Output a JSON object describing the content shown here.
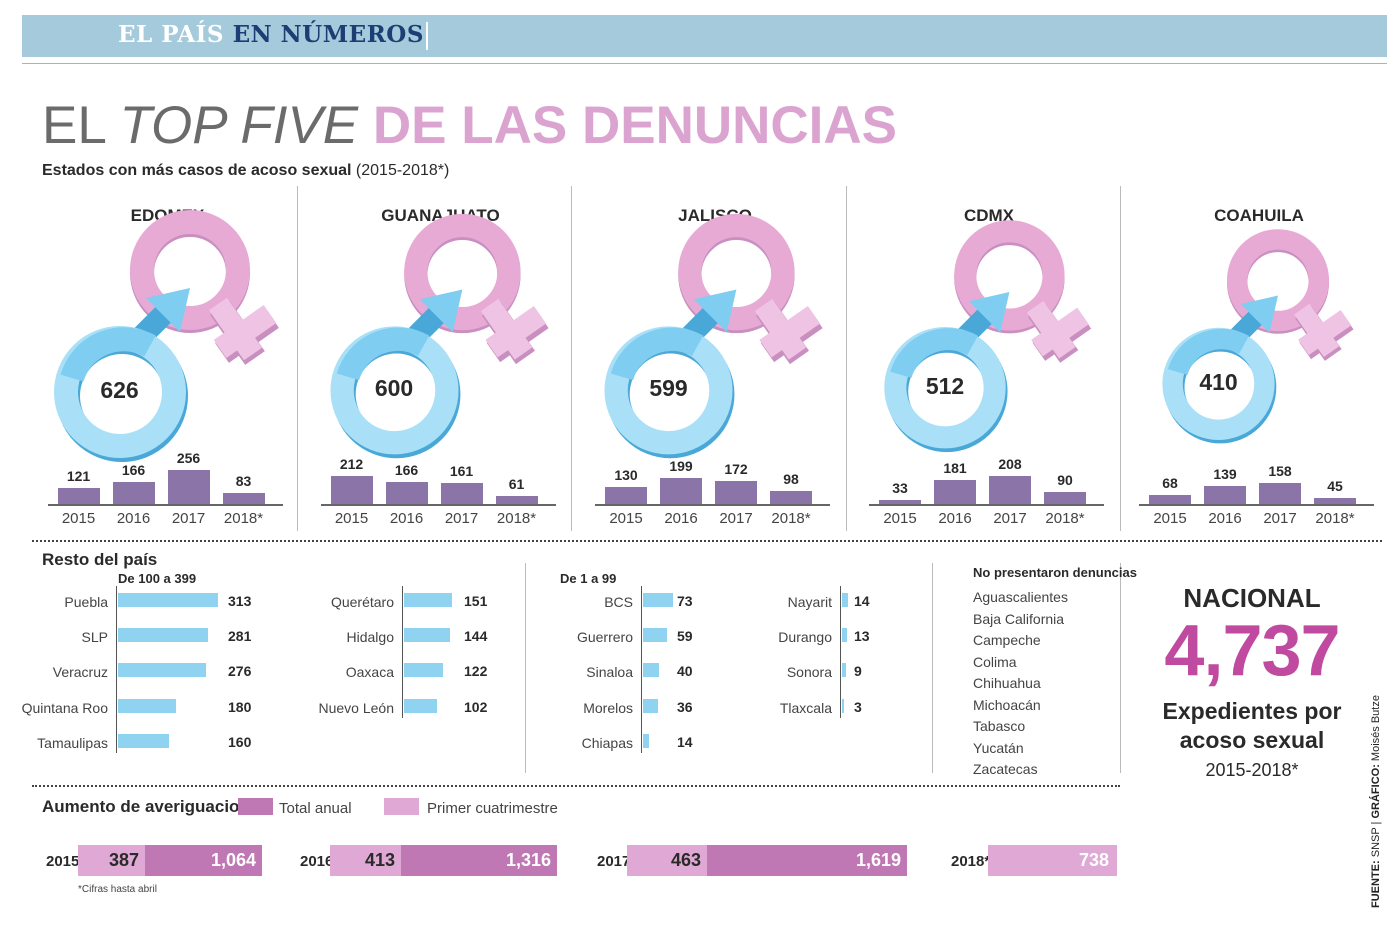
{
  "header": {
    "section_part1": "EL PAÍS",
    "section_part2": "EN NÚMEROS"
  },
  "title": {
    "part1": "EL ",
    "part2": "TOP FIVE",
    "part3": " DE LAS DENUNCIAS"
  },
  "subtitle": {
    "bold": "Estados con más casos de acoso sexual",
    "rest": " (2015-2018*)"
  },
  "colors": {
    "female": "#e7aad4",
    "male": "#7fcdf0",
    "bar": "#8b74a8",
    "hbar": "#8fd3f0",
    "accent": "#c04a9f",
    "total_anual": "#c078b4",
    "primer_cuatrimestre": "#e0a8d4"
  },
  "chart_data": [
    {
      "type": "bar",
      "categories": [
        "2015",
        "2016",
        "2017",
        "2018*"
      ],
      "states": [
        {
          "name": "EDOMEX",
          "total": 626,
          "values": [
            121,
            166,
            256,
            83
          ]
        },
        {
          "name": "GUANAJUATO",
          "total": 600,
          "values": [
            212,
            166,
            161,
            61
          ]
        },
        {
          "name": "JALISCO",
          "total": 599,
          "values": [
            130,
            199,
            172,
            98
          ]
        },
        {
          "name": "CDMX",
          "total": 512,
          "values": [
            33,
            181,
            208,
            90
          ]
        },
        {
          "name": "COAHUILA",
          "total": 410,
          "values": [
            68,
            139,
            158,
            45
          ]
        }
      ]
    },
    {
      "type": "bar",
      "title": "Resto del país",
      "groups": [
        {
          "title": "De 100 a 399",
          "items": [
            {
              "label": "Puebla",
              "value": 313
            },
            {
              "label": "SLP",
              "value": 281
            },
            {
              "label": "Veracruz",
              "value": 276
            },
            {
              "label": "Quintana Roo",
              "value": 180
            },
            {
              "label": "Tamaulipas",
              "value": 160
            },
            {
              "label": "Querétaro",
              "value": 151
            },
            {
              "label": "Hidalgo",
              "value": 144
            },
            {
              "label": "Oaxaca",
              "value": 122
            },
            {
              "label": "Nuevo León",
              "value": 102
            }
          ]
        },
        {
          "title": "De 1 a 99",
          "items": [
            {
              "label": "BCS",
              "value": 73
            },
            {
              "label": "Guerrero",
              "value": 59
            },
            {
              "label": "Sinaloa",
              "value": 40
            },
            {
              "label": "Morelos",
              "value": 36
            },
            {
              "label": "Chiapas",
              "value": 14
            },
            {
              "label": "Nayarit",
              "value": 14
            },
            {
              "label": "Durango",
              "value": 13
            },
            {
              "label": "Sonora",
              "value": 9
            },
            {
              "label": "Tlaxcala",
              "value": 3
            }
          ]
        }
      ]
    },
    {
      "type": "bar",
      "title": "Aumento de averiguaciones",
      "series_names": [
        "Total anual",
        "Primer cuatrimestre"
      ],
      "rows": [
        {
          "year": "2015",
          "primer_cuatrimestre": 387,
          "total_anual": 1064,
          "label_primer": "387",
          "label_total": "1,064"
        },
        {
          "year": "2016",
          "primer_cuatrimestre": 413,
          "total_anual": 1316,
          "label_primer": "413",
          "label_total": "1,316"
        },
        {
          "year": "2017",
          "primer_cuatrimestre": 463,
          "total_anual": 1619,
          "label_primer": "463",
          "label_total": "1,619"
        },
        {
          "year": "2018*",
          "primer_cuatrimestre": 738,
          "total_anual": null,
          "label_primer": "738",
          "label_total": ""
        }
      ]
    }
  ],
  "no_denuncias": {
    "title": "No presentaron denuncias",
    "items": [
      "Aguascalientes",
      "Baja California",
      "Campeche",
      "Colima",
      "Chihuahua",
      "Michoacán",
      "Tabasco",
      "Yucatán",
      "Zacatecas"
    ]
  },
  "nacional": {
    "title": "NACIONAL",
    "value": "4,737",
    "desc_line1": "Expedientes por",
    "desc_line2": "acoso sexual",
    "years": "2015-2018*"
  },
  "footnote": "*Cifras hasta abril",
  "source": {
    "label1": "FUENTE:",
    "value1": " SNSP | ",
    "label2": "GRÁFICO:",
    "value2": " Moisés Butze"
  }
}
